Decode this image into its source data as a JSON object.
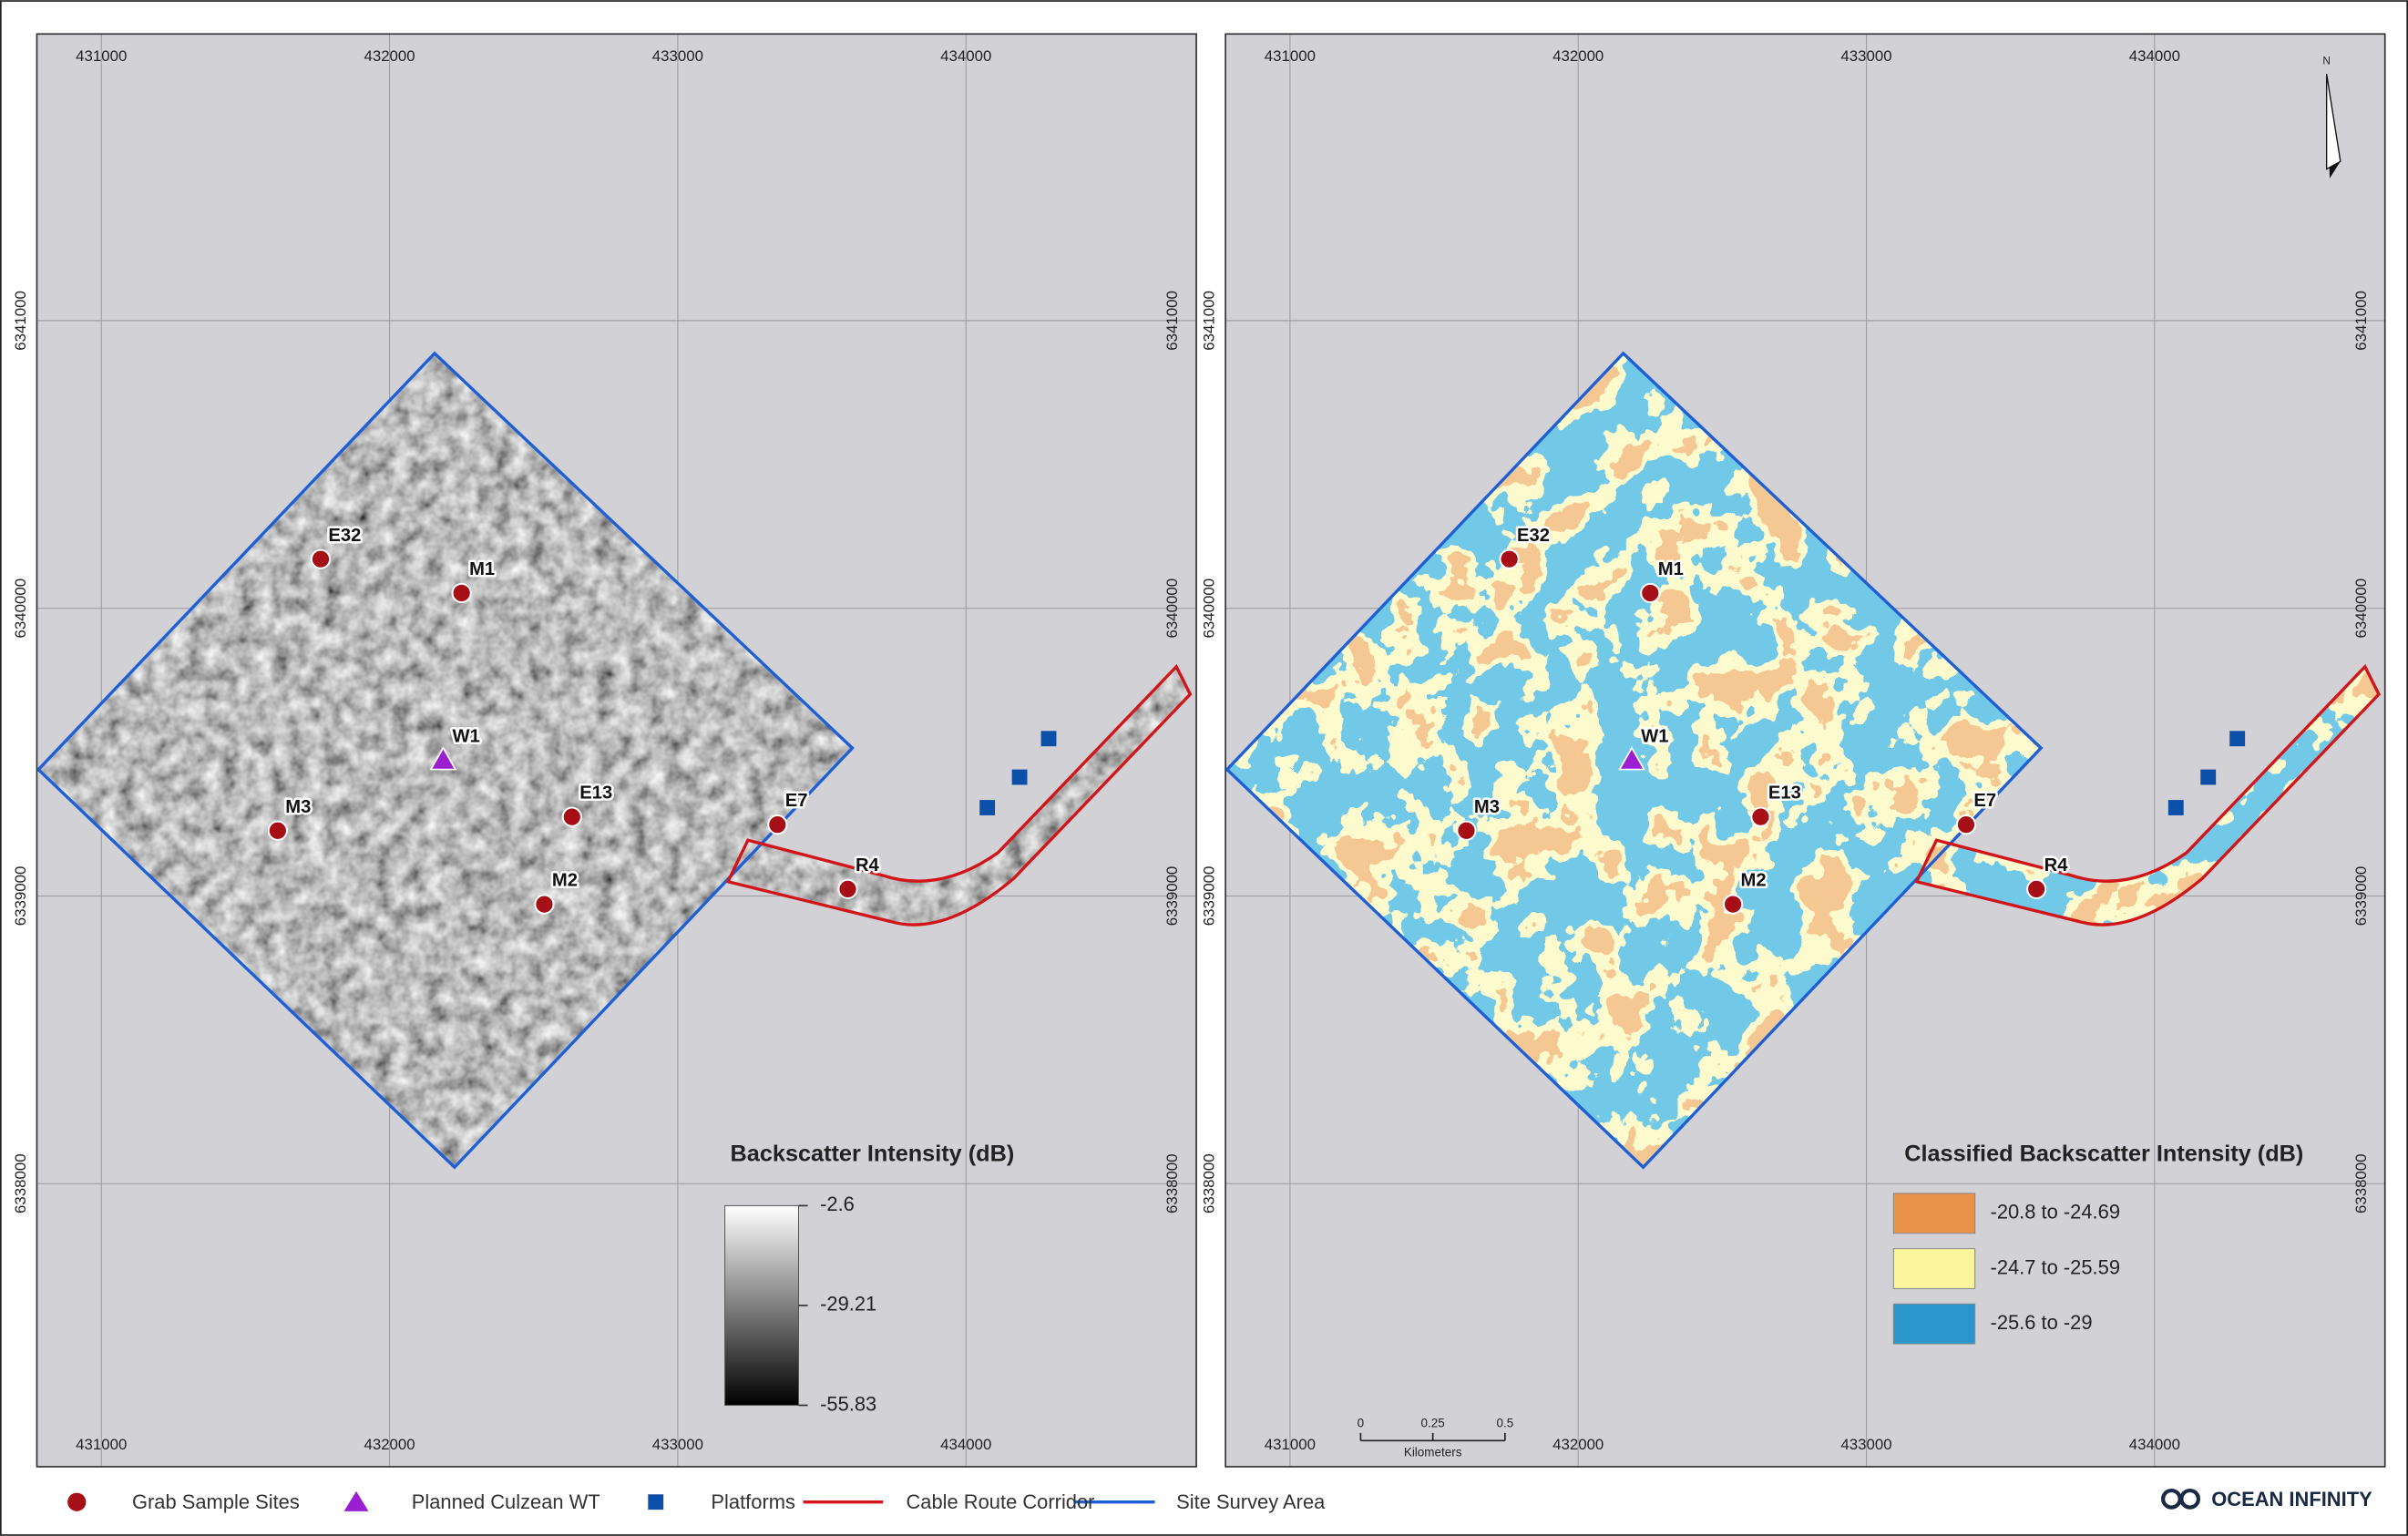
{
  "maps": [
    {
      "legend": {
        "title": "Backscatter Intensity (dB)",
        "stops": [
          -2.6,
          -29.21,
          -55.83
        ]
      }
    },
    {
      "legend": {
        "title": "Classified Backscatter Intensity (dB)",
        "classes": [
          {
            "label": "-20.8 to -24.69",
            "color": "#e8924a"
          },
          {
            "label": "-24.7 to -25.59",
            "color": "#fbf59c"
          },
          {
            "label": "-25.6 to -29",
            "color": "#2a96cc"
          }
        ]
      },
      "scale_bar": {
        "ticks": [
          0,
          0.25,
          0.5
        ],
        "unit": "Kilometers"
      },
      "north": "N"
    }
  ],
  "x_ticks": [
    431000,
    432000,
    433000,
    434000
  ],
  "y_ticks": [
    6338000,
    6339000,
    6340000,
    6341000
  ],
  "sites": [
    {
      "label": "E32",
      "easting": 431761,
      "northing": 6340171
    },
    {
      "label": "M1",
      "easting": 432250,
      "northing": 6340053
    },
    {
      "label": "M3",
      "easting": 431612,
      "northing": 6339227
    },
    {
      "label": "E13",
      "easting": 432633,
      "northing": 6339275
    },
    {
      "label": "M2",
      "easting": 432537,
      "northing": 6338971
    },
    {
      "label": "E7",
      "easting": 433346,
      "northing": 6339248
    },
    {
      "label": "R4",
      "easting": 433590,
      "northing": 6339024
    }
  ],
  "turbine": {
    "label": "W1",
    "easting": 432186,
    "northing": 6339472
  },
  "platforms": [
    {
      "easting": 434074,
      "northing": 6339307
    },
    {
      "easting": 434186,
      "northing": 6339413
    },
    {
      "easting": 434287,
      "northing": 6339547
    }
  ],
  "legend": [
    "Grab Sample Sites",
    "Planned Culzean WT",
    "Platforms",
    "Cable Route Corridor",
    "Site Survey Area"
  ],
  "logo": "OCEAN INFINITY"
}
